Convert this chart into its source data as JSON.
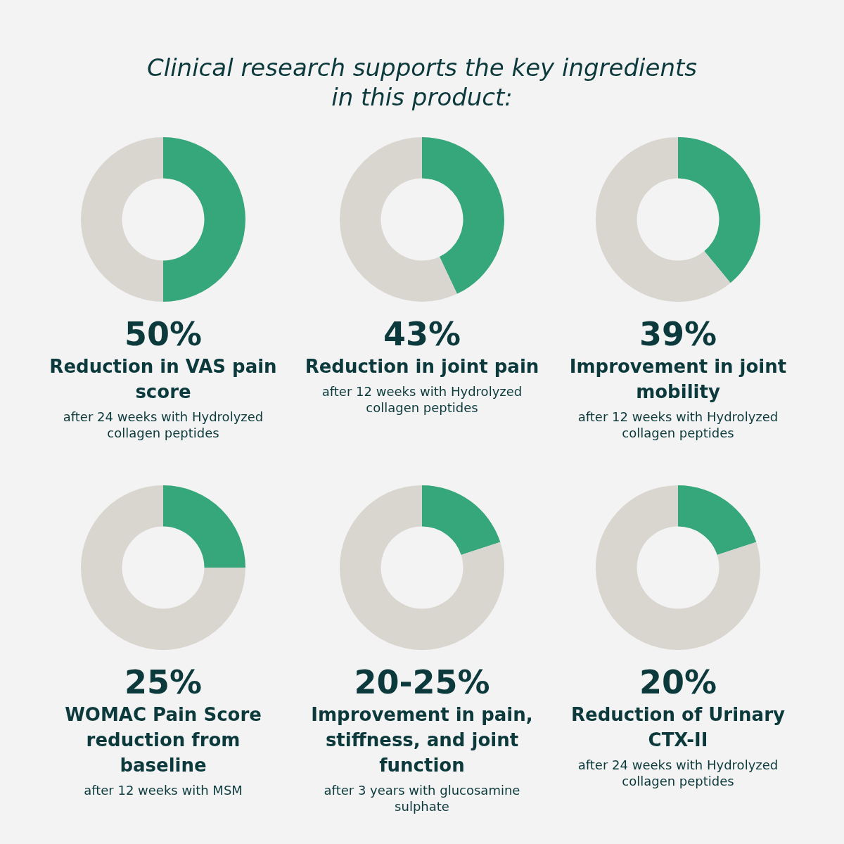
{
  "chart_data": [
    {
      "type": "other",
      "title": "Clinical research supports the key ingredients in this product:"
    },
    {
      "type": "donut",
      "categories": [
        null,
        null
      ],
      "values": [
        50,
        50
      ],
      "colors": [
        "#36a77a",
        "#d9d5cf"
      ],
      "legend": false,
      "annotations": [
        "50%",
        "Reduction in VAS pain score",
        "after 24 weeks with Hydrolyzed collagen peptides"
      ]
    },
    {
      "type": "donut",
      "categories": [
        null,
        null
      ],
      "values": [
        43,
        57
      ],
      "colors": [
        "#36a77a",
        "#d9d5cf"
      ],
      "legend": false,
      "annotations": [
        "43%",
        "Reduction in joint pain",
        "after 12 weeks with Hydrolyzed collagen peptides"
      ]
    },
    {
      "type": "donut",
      "categories": [
        null,
        null
      ],
      "values": [
        39,
        61
      ],
      "colors": [
        "#36a77a",
        "#d9d5cf"
      ],
      "legend": false,
      "annotations": [
        "39%",
        "Improvement in joint mobility",
        "after 12 weeks with Hydrolyzed collagen peptides"
      ]
    },
    {
      "type": "donut",
      "categories": [
        null,
        null
      ],
      "values": [
        25,
        75
      ],
      "colors": [
        "#36a77a",
        "#d9d5cf"
      ],
      "legend": false,
      "annotations": [
        "25%",
        "WOMAC Pain Score reduction from baseline",
        "after 12 weeks with MSM"
      ]
    },
    {
      "type": "donut",
      "categories": [
        null,
        null
      ],
      "values": [
        20,
        80
      ],
      "colors": [
        "#36a77a",
        "#d9d5cf"
      ],
      "legend": false,
      "annotations": [
        "20-25%",
        "Improvement in pain, stiffness, and joint function",
        "after 3 years with glucosamine sulphate"
      ]
    },
    {
      "type": "donut",
      "categories": [
        null,
        null
      ],
      "values": [
        20,
        80
      ],
      "colors": [
        "#36a77a",
        "#d9d5cf"
      ],
      "legend": false,
      "annotations": [
        "20%",
        "Reduction of Urinary CTX-II",
        "after 24 weeks with Hydrolyzed collagen peptides"
      ]
    }
  ]
}
